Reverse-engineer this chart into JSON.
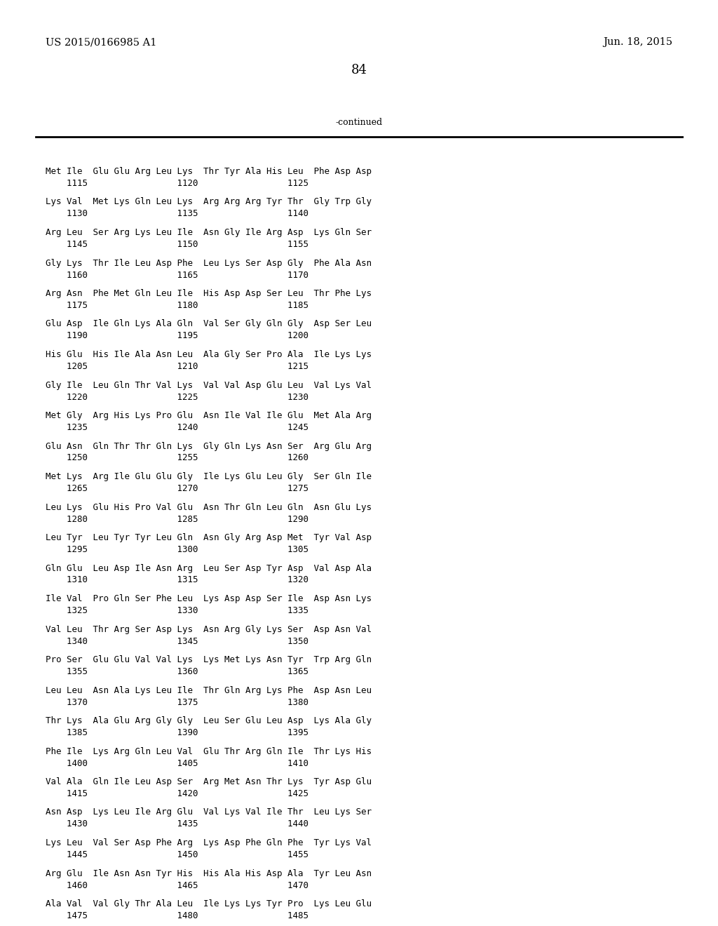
{
  "header_left": "US 2015/0166985 A1",
  "header_right": "Jun. 18, 2015",
  "page_number": "84",
  "continued_text": "-continued",
  "background_color": "#ffffff",
  "text_color": "#000000",
  "font_size": 9.0,
  "header_font_size": 10.5,
  "page_num_font_size": 13,
  "sequence_data": [
    [
      "Met Ile  Glu Glu Arg Leu Lys  Thr Tyr Ala His Leu  Phe Asp Asp",
      "    1115                 1120                 1125"
    ],
    [
      "Lys Val  Met Lys Gln Leu Lys  Arg Arg Arg Tyr Thr  Gly Trp Gly",
      "    1130                 1135                 1140"
    ],
    [
      "Arg Leu  Ser Arg Lys Leu Ile  Asn Gly Ile Arg Asp  Lys Gln Ser",
      "    1145                 1150                 1155"
    ],
    [
      "Gly Lys  Thr Ile Leu Asp Phe  Leu Lys Ser Asp Gly  Phe Ala Asn",
      "    1160                 1165                 1170"
    ],
    [
      "Arg Asn  Phe Met Gln Leu Ile  His Asp Asp Ser Leu  Thr Phe Lys",
      "    1175                 1180                 1185"
    ],
    [
      "Glu Asp  Ile Gln Lys Ala Gln  Val Ser Gly Gln Gly  Asp Ser Leu",
      "    1190                 1195                 1200"
    ],
    [
      "His Glu  His Ile Ala Asn Leu  Ala Gly Ser Pro Ala  Ile Lys Lys",
      "    1205                 1210                 1215"
    ],
    [
      "Gly Ile  Leu Gln Thr Val Lys  Val Val Asp Glu Leu  Val Lys Val",
      "    1220                 1225                 1230"
    ],
    [
      "Met Gly  Arg His Lys Pro Glu  Asn Ile Val Ile Glu  Met Ala Arg",
      "    1235                 1240                 1245"
    ],
    [
      "Glu Asn  Gln Thr Thr Gln Lys  Gly Gln Lys Asn Ser  Arg Glu Arg",
      "    1250                 1255                 1260"
    ],
    [
      "Met Lys  Arg Ile Glu Glu Gly  Ile Lys Glu Leu Gly  Ser Gln Ile",
      "    1265                 1270                 1275"
    ],
    [
      "Leu Lys  Glu His Pro Val Glu  Asn Thr Gln Leu Gln  Asn Glu Lys",
      "    1280                 1285                 1290"
    ],
    [
      "Leu Tyr  Leu Tyr Tyr Leu Gln  Asn Gly Arg Asp Met  Tyr Val Asp",
      "    1295                 1300                 1305"
    ],
    [
      "Gln Glu  Leu Asp Ile Asn Arg  Leu Ser Asp Tyr Asp  Val Asp Ala",
      "    1310                 1315                 1320"
    ],
    [
      "Ile Val  Pro Gln Ser Phe Leu  Lys Asp Asp Ser Ile  Asp Asn Lys",
      "    1325                 1330                 1335"
    ],
    [
      "Val Leu  Thr Arg Ser Asp Lys  Asn Arg Gly Lys Ser  Asp Asn Val",
      "    1340                 1345                 1350"
    ],
    [
      "Pro Ser  Glu Glu Val Val Lys  Lys Met Lys Asn Tyr  Trp Arg Gln",
      "    1355                 1360                 1365"
    ],
    [
      "Leu Leu  Asn Ala Lys Leu Ile  Thr Gln Arg Lys Phe  Asp Asn Leu",
      "    1370                 1375                 1380"
    ],
    [
      "Thr Lys  Ala Glu Arg Gly Gly  Leu Ser Glu Leu Asp  Lys Ala Gly",
      "    1385                 1390                 1395"
    ],
    [
      "Phe Ile  Lys Arg Gln Leu Val  Glu Thr Arg Gln Ile  Thr Lys His",
      "    1400                 1405                 1410"
    ],
    [
      "Val Ala  Gln Ile Leu Asp Ser  Arg Met Asn Thr Lys  Tyr Asp Glu",
      "    1415                 1420                 1425"
    ],
    [
      "Asn Asp  Lys Leu Ile Arg Glu  Val Lys Val Ile Thr  Leu Lys Ser",
      "    1430                 1435                 1440"
    ],
    [
      "Lys Leu  Val Ser Asp Phe Arg  Lys Asp Phe Gln Phe  Tyr Lys Val",
      "    1445                 1450                 1455"
    ],
    [
      "Arg Glu  Ile Asn Asn Tyr His  His Ala His Asp Ala  Tyr Leu Asn",
      "    1460                 1465                 1470"
    ],
    [
      "Ala Val  Val Gly Thr Ala Leu  Ile Lys Lys Tyr Pro  Lys Leu Glu",
      "    1475                 1480                 1485"
    ]
  ]
}
